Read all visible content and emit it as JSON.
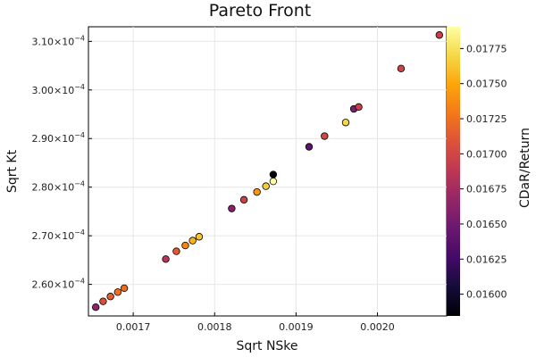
{
  "chart_data": {
    "type": "scatter",
    "title": "Pareto Front",
    "xlabel": "Sqrt NSke",
    "ylabel": "Sqrt Kt",
    "colorbar_label": "CDaR/Return",
    "grid": true,
    "xlim": [
      0.001645,
      0.002085
    ],
    "ylim": [
      0.0002535,
      0.000313
    ],
    "clim": [
      0.015845,
      0.017905
    ],
    "x_ticks": [
      {
        "value": 0.0017,
        "label": "0.0017"
      },
      {
        "value": 0.0018,
        "label": "0.0018"
      },
      {
        "value": 0.0019,
        "label": "0.0019"
      },
      {
        "value": 0.002,
        "label": "0.0020"
      }
    ],
    "y_ticks": [
      {
        "value": 0.00026,
        "label": "2.60×10",
        "exp": "−4"
      },
      {
        "value": 0.00027,
        "label": "2.70×10",
        "exp": "−4"
      },
      {
        "value": 0.00028,
        "label": "2.80×10",
        "exp": "−4"
      },
      {
        "value": 0.00029,
        "label": "2.90×10",
        "exp": "−4"
      },
      {
        "value": 0.0003,
        "label": "3.00×10",
        "exp": "−4"
      },
      {
        "value": 0.00031,
        "label": "3.10×10",
        "exp": "−4"
      }
    ],
    "c_ticks": [
      {
        "value": 0.016,
        "label": "0.01600"
      },
      {
        "value": 0.01625,
        "label": "0.01625"
      },
      {
        "value": 0.0165,
        "label": "0.01650"
      },
      {
        "value": 0.01675,
        "label": "0.01675"
      },
      {
        "value": 0.017,
        "label": "0.01700"
      },
      {
        "value": 0.01725,
        "label": "0.01725"
      },
      {
        "value": 0.0175,
        "label": "0.01750"
      },
      {
        "value": 0.01775,
        "label": "0.01775"
      }
    ],
    "points": [
      {
        "x": 0.001654,
        "y": 0.0002553,
        "c": 0.01665
      },
      {
        "x": 0.001663,
        "y": 0.0002565,
        "c": 0.01705
      },
      {
        "x": 0.001672,
        "y": 0.0002575,
        "c": 0.01715
      },
      {
        "x": 0.001681,
        "y": 0.0002584,
        "c": 0.01725
      },
      {
        "x": 0.001689,
        "y": 0.0002592,
        "c": 0.01722
      },
      {
        "x": 0.00174,
        "y": 0.0002652,
        "c": 0.01685
      },
      {
        "x": 0.001753,
        "y": 0.0002668,
        "c": 0.01712
      },
      {
        "x": 0.001764,
        "y": 0.000268,
        "c": 0.01735
      },
      {
        "x": 0.001773,
        "y": 0.000269,
        "c": 0.01755
      },
      {
        "x": 0.001781,
        "y": 0.0002698,
        "c": 0.01762
      },
      {
        "x": 0.001821,
        "y": 0.0002756,
        "c": 0.0166
      },
      {
        "x": 0.001836,
        "y": 0.0002774,
        "c": 0.01698
      },
      {
        "x": 0.001852,
        "y": 0.000279,
        "c": 0.01742
      },
      {
        "x": 0.001863,
        "y": 0.0002802,
        "c": 0.01765
      },
      {
        "x": 0.001872,
        "y": 0.0002812,
        "c": 0.01795
      },
      {
        "x": 0.001872,
        "y": 0.0002826,
        "c": 0.01585
      },
      {
        "x": 0.001916,
        "y": 0.0002883,
        "c": 0.0164
      },
      {
        "x": 0.001935,
        "y": 0.0002905,
        "c": 0.017
      },
      {
        "x": 0.001961,
        "y": 0.0002933,
        "c": 0.0177
      },
      {
        "x": 0.001971,
        "y": 0.0002961,
        "c": 0.01655
      },
      {
        "x": 0.001977,
        "y": 0.0002965,
        "c": 0.01695
      },
      {
        "x": 0.002029,
        "y": 0.0003044,
        "c": 0.01698
      },
      {
        "x": 0.002076,
        "y": 0.0003113,
        "c": 0.01695
      }
    ]
  }
}
